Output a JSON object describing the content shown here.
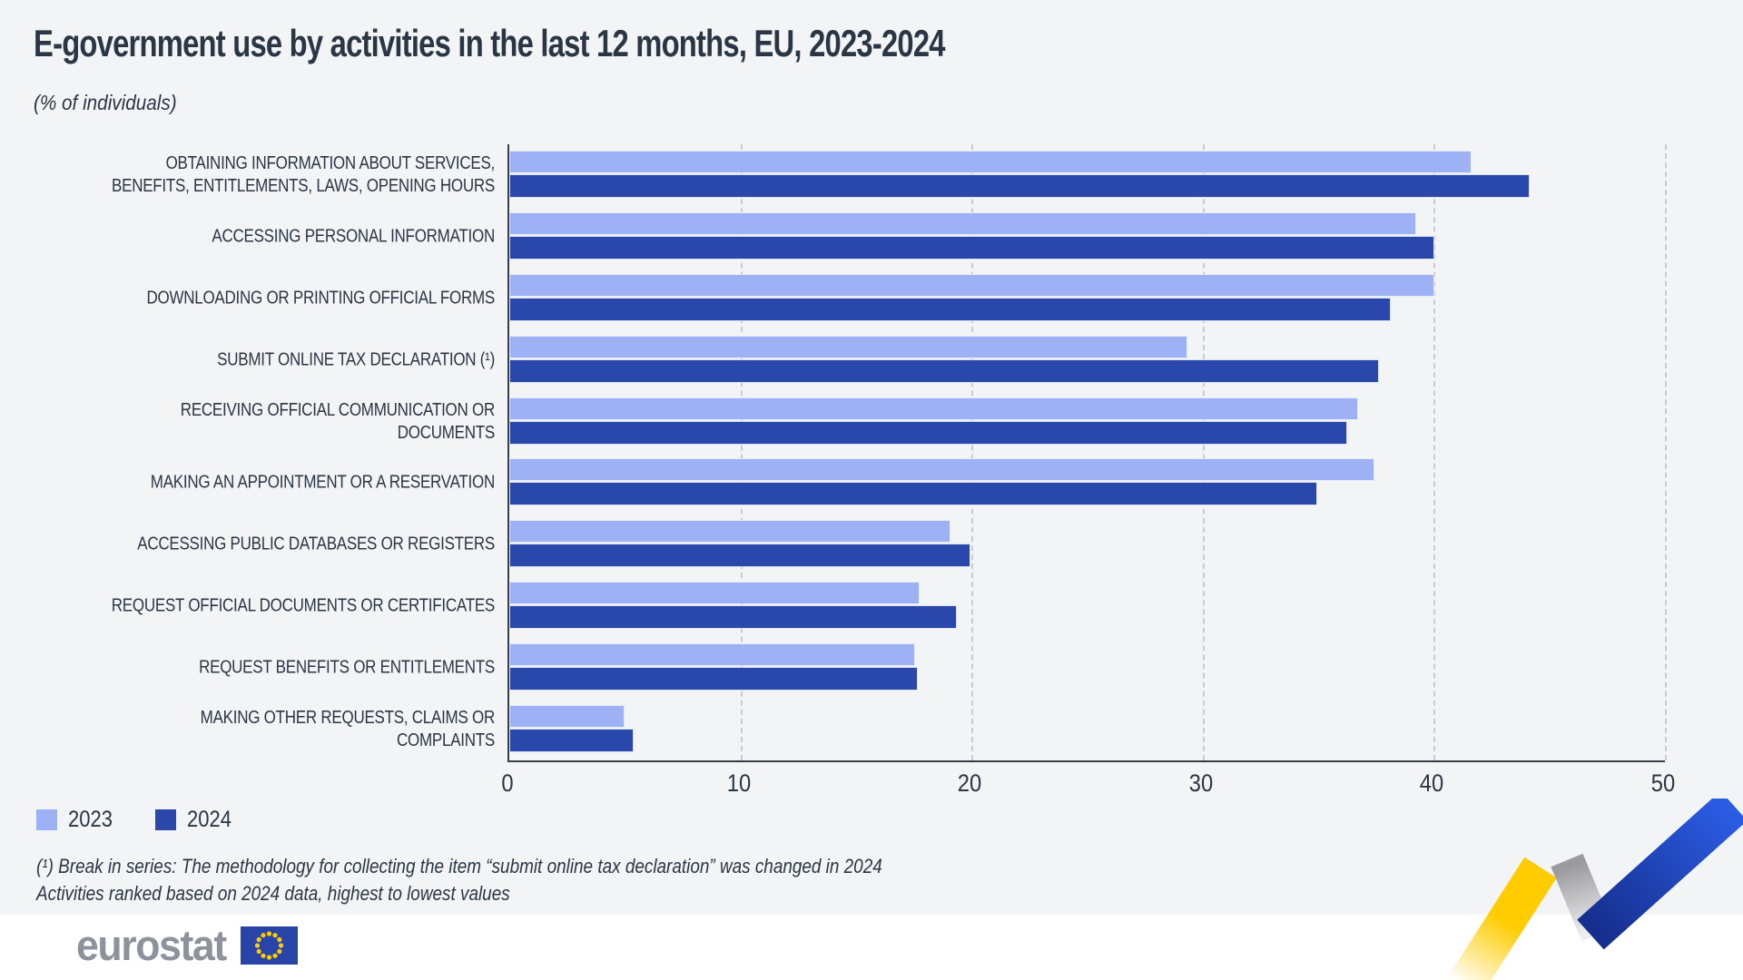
{
  "header": {
    "title": "E-government use by activities in the last 12 months, EU, 2023-2024",
    "subtitle": "(% of individuals)"
  },
  "chart_data": {
    "type": "bar",
    "orientation": "horizontal",
    "title": "E-government use by activities in the last 12 months, EU, 2023-2024",
    "unit_label": "(% of individuals)",
    "categories": [
      "OBTAINING INFORMATION ABOUT SERVICES, BENEFITS, ENTITLEMENTS, LAWS, OPENING HOURS",
      "ACCESSING PERSONAL INFORMATION",
      "DOWNLOADING OR PRINTING OFFICIAL FORMS",
      "SUBMIT ONLINE TAX DECLARATION (¹)",
      "RECEIVING OFFICIAL COMMUNICATION OR DOCUMENTS",
      "MAKING AN APPOINTMENT OR A RESERVATION",
      "ACCESSING PUBLIC DATABASES OR REGISTERS",
      "REQUEST OFFICIAL DOCUMENTS OR CERTIFICATES",
      "REQUEST BENEFITS OR ENTITLEMENTS",
      "MAKING OTHER REQUESTS, CLAIMS OR COMPLAINTS"
    ],
    "series": [
      {
        "name": "2023",
        "color": "#9db1f4",
        "values": [
          41.7,
          39.3,
          40.1,
          29.4,
          36.8,
          37.5,
          19.1,
          17.8,
          17.6,
          5.0
        ]
      },
      {
        "name": "2024",
        "color": "#2a47ac",
        "values": [
          44.2,
          40.1,
          38.2,
          37.7,
          36.3,
          35.0,
          20.0,
          19.4,
          17.7,
          5.4
        ]
      }
    ],
    "xlim": [
      0,
      50
    ],
    "xticks": [
      0,
      10,
      20,
      30,
      40,
      50
    ],
    "grid": "vertical-dashed",
    "legend_position": "bottom-left"
  },
  "footnotes": {
    "line1": "(¹) Break in series: The methodology for collecting the item “submit online tax declaration” was changed in 2024",
    "line2": "Activities ranked based on 2024 data, highest to lowest values"
  },
  "footer": {
    "logo_text": "eurostat"
  },
  "colors": {
    "background": "#f3f4f5",
    "footer_background": "#ffffff",
    "bar_2023": "#9db1f4",
    "bar_2024": "#2a47ac",
    "text": "#2b3645",
    "axis_line": "#3a3f47",
    "gridline": "#c9cbce",
    "logo_gray": "#8d939c",
    "eu_flag_blue": "#2844a8",
    "star_yellow": "#ffcc00"
  }
}
